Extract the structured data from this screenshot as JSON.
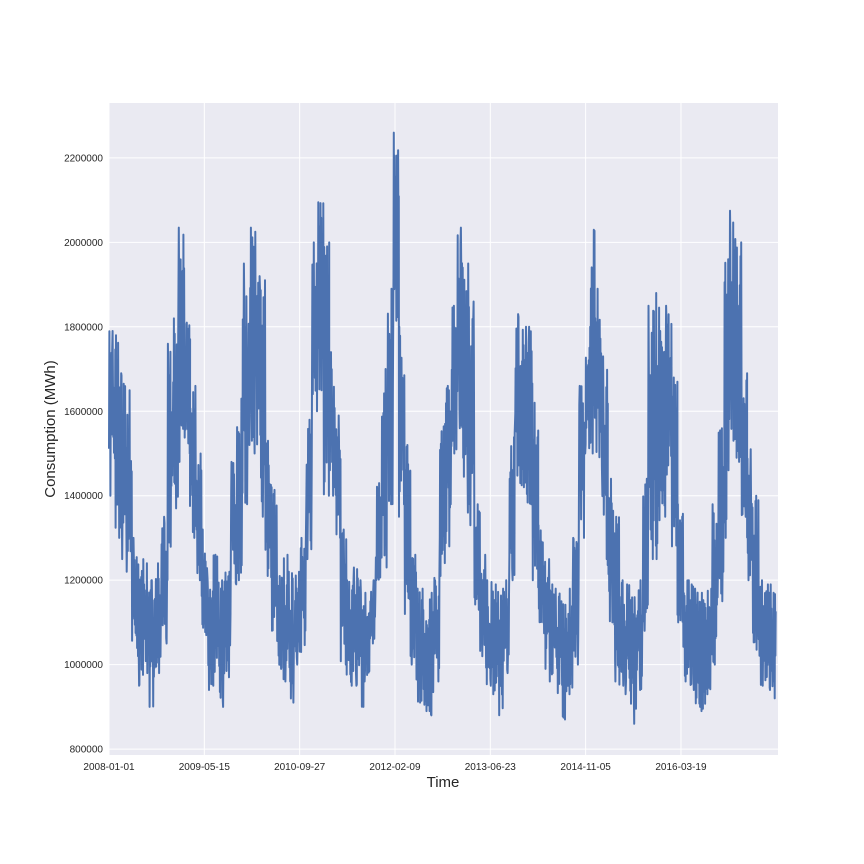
{
  "chart_data": {
    "type": "line",
    "title": "",
    "xlabel": "Time",
    "ylabel": "Consumption (MWh)",
    "xlim": [
      "2008-01-01",
      "2017-08-10"
    ],
    "ylim": [
      786000,
      2330000
    ],
    "grid": true,
    "legend": "none",
    "background_color": "#EAEAF2",
    "grid_color": "#FFFFFF",
    "line_color": "#4C72B0",
    "x_ticks": [
      "2008-01-01",
      "2009-05-15",
      "2010-09-27",
      "2012-02-09",
      "2013-06-23",
      "2014-11-05",
      "2016-03-19"
    ],
    "y_ticks": [
      "800000",
      "1000000",
      "1200000",
      "1400000",
      "1600000",
      "1800000",
      "2000000",
      "2200000"
    ],
    "series_note_resolution": "monthly",
    "series": [
      {
        "monthly_range": [
          [
            "2008-01",
            1400000,
            1790000
          ],
          [
            "2008-02",
            1300000,
            1780000
          ],
          [
            "2008-03",
            1250000,
            1690000
          ],
          [
            "2008-04",
            1220000,
            1650000
          ],
          [
            "2008-05",
            1000000,
            1300000
          ],
          [
            "2008-06",
            950000,
            1250000
          ],
          [
            "2008-07",
            980000,
            1240000
          ],
          [
            "2008-08",
            900000,
            1200000
          ],
          [
            "2008-09",
            980000,
            1240000
          ],
          [
            "2008-10",
            1050000,
            1350000
          ],
          [
            "2008-11",
            1200000,
            1760000
          ],
          [
            "2008-12",
            1370000,
            1820000
          ],
          [
            "2009-01",
            1480000,
            2035000
          ],
          [
            "2009-02",
            1500000,
            1810000
          ],
          [
            "2009-03",
            1300000,
            1660000
          ],
          [
            "2009-04",
            1200000,
            1500000
          ],
          [
            "2009-05",
            1070000,
            1320000
          ],
          [
            "2009-06",
            940000,
            1200000
          ],
          [
            "2009-07",
            950000,
            1260000
          ],
          [
            "2009-08",
            900000,
            1200000
          ],
          [
            "2009-09",
            970000,
            1220000
          ],
          [
            "2009-10",
            1190000,
            1480000
          ],
          [
            "2009-11",
            1200000,
            1630000
          ],
          [
            "2009-12",
            1380000,
            1950000
          ],
          [
            "2010-01",
            1520000,
            2035000
          ],
          [
            "2010-02",
            1500000,
            2025000
          ],
          [
            "2010-03",
            1350000,
            1920000
          ],
          [
            "2010-04",
            1210000,
            1530000
          ],
          [
            "2010-05",
            1080000,
            1420000
          ],
          [
            "2010-06",
            990000,
            1210000
          ],
          [
            "2010-07",
            960000,
            1260000
          ],
          [
            "2010-08",
            910000,
            1220000
          ],
          [
            "2010-09",
            1000000,
            1220000
          ],
          [
            "2010-10",
            1030000,
            1300000
          ],
          [
            "2010-11",
            1250000,
            1580000
          ],
          [
            "2010-12",
            1600000,
            2000000
          ],
          [
            "2011-01",
            1650000,
            2095000
          ],
          [
            "2011-02",
            1400000,
            2000000
          ],
          [
            "2011-03",
            1400000,
            1740000
          ],
          [
            "2011-04",
            1300000,
            1590000
          ],
          [
            "2011-05",
            1000000,
            1320000
          ],
          [
            "2011-06",
            950000,
            1200000
          ],
          [
            "2011-07",
            950000,
            1230000
          ],
          [
            "2011-08",
            900000,
            1200000
          ],
          [
            "2011-09",
            960000,
            1170000
          ],
          [
            "2011-10",
            1050000,
            1200000
          ],
          [
            "2011-11",
            1200000,
            1430000
          ],
          [
            "2011-12",
            1230000,
            1700000
          ],
          [
            "2012-01",
            1380000,
            1890000
          ],
          [
            "2012-02",
            1800000,
            2260000
          ],
          [
            "2012-03",
            1350000,
            1800000
          ],
          [
            "2012-04",
            1120000,
            1520000
          ],
          [
            "2012-05",
            1000000,
            1260000
          ],
          [
            "2012-06",
            910000,
            1180000
          ],
          [
            "2012-07",
            890000,
            1180000
          ],
          [
            "2012-08",
            880000,
            1170000
          ],
          [
            "2012-09",
            960000,
            1210000
          ],
          [
            "2012-10",
            1210000,
            1570000
          ],
          [
            "2012-11",
            1280000,
            1660000
          ],
          [
            "2012-12",
            1500000,
            1850000
          ],
          [
            "2013-01",
            1560000,
            2035000
          ],
          [
            "2013-02",
            1360000,
            1950000
          ],
          [
            "2013-03",
            1330000,
            1860000
          ],
          [
            "2013-04",
            1130000,
            1380000
          ],
          [
            "2013-05",
            1020000,
            1260000
          ],
          [
            "2013-06",
            950000,
            1200000
          ],
          [
            "2013-07",
            930000,
            1190000
          ],
          [
            "2013-08",
            880000,
            1180000
          ],
          [
            "2013-09",
            980000,
            1200000
          ],
          [
            "2013-10",
            1200000,
            1550000
          ],
          [
            "2013-11",
            1430000,
            1830000
          ],
          [
            "2013-12",
            1420000,
            1800000
          ],
          [
            "2014-01",
            1380000,
            1800000
          ],
          [
            "2014-02",
            1200000,
            1620000
          ],
          [
            "2014-03",
            1100000,
            1330000
          ],
          [
            "2014-04",
            990000,
            1250000
          ],
          [
            "2014-05",
            960000,
            1190000
          ],
          [
            "2014-06",
            930000,
            1180000
          ],
          [
            "2014-07",
            870000,
            1150000
          ],
          [
            "2014-08",
            930000,
            1180000
          ],
          [
            "2014-09",
            1000000,
            1300000
          ],
          [
            "2014-10",
            1300000,
            1660000
          ],
          [
            "2014-11",
            1500000,
            1800000
          ],
          [
            "2014-12",
            1500000,
            2030000
          ],
          [
            "2015-01",
            1470000,
            1890000
          ],
          [
            "2015-02",
            1250000,
            1730000
          ],
          [
            "2015-03",
            1100000,
            1440000
          ],
          [
            "2015-04",
            960000,
            1350000
          ],
          [
            "2015-05",
            950000,
            1200000
          ],
          [
            "2015-06",
            930000,
            1190000
          ],
          [
            "2015-07",
            860000,
            1160000
          ],
          [
            "2015-08",
            940000,
            1200000
          ],
          [
            "2015-09",
            1080000,
            1440000
          ],
          [
            "2015-10",
            1250000,
            1850000
          ],
          [
            "2015-11",
            1250000,
            1880000
          ],
          [
            "2015-12",
            1350000,
            1790000
          ],
          [
            "2016-01",
            1450000,
            1850000
          ],
          [
            "2016-02",
            1280000,
            1680000
          ],
          [
            "2016-03",
            1100000,
            1380000
          ],
          [
            "2016-04",
            960000,
            1200000
          ],
          [
            "2016-05",
            940000,
            1190000
          ],
          [
            "2016-06",
            900000,
            1180000
          ],
          [
            "2016-07",
            890000,
            1170000
          ],
          [
            "2016-08",
            930000,
            1180000
          ],
          [
            "2016-09",
            1000000,
            1380000
          ],
          [
            "2016-10",
            1150000,
            1560000
          ],
          [
            "2016-11",
            1300000,
            1960000
          ],
          [
            "2016-12",
            1530000,
            2075000
          ],
          [
            "2017-01",
            1480000,
            2000000
          ],
          [
            "2017-02",
            1350000,
            1690000
          ],
          [
            "2017-03",
            1200000,
            1510000
          ],
          [
            "2017-04",
            1000000,
            1400000
          ],
          [
            "2017-05",
            950000,
            1200000
          ],
          [
            "2017-06",
            940000,
            1190000
          ],
          [
            "2017-07",
            920000,
            1190000
          ]
        ]
      }
    ]
  }
}
